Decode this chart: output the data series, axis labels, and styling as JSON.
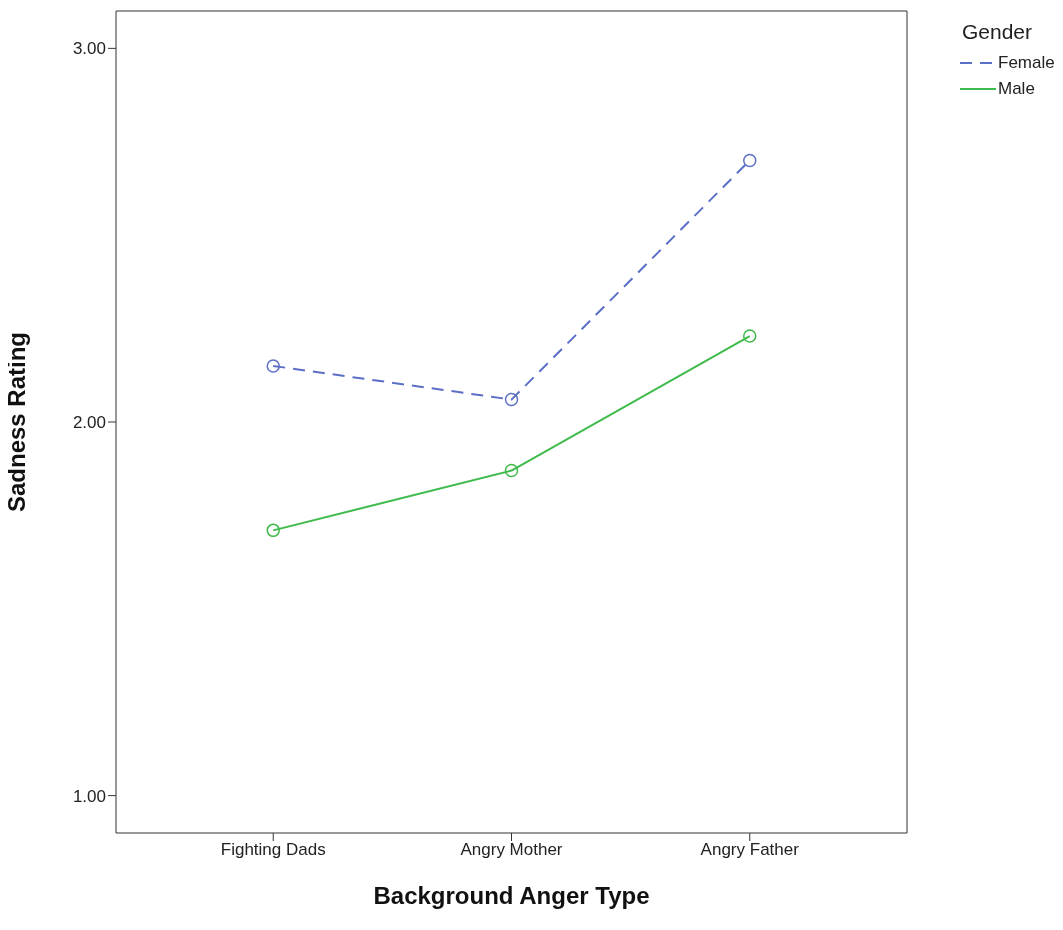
{
  "chart_data": {
    "type": "line",
    "xlabel": "Background Anger Type",
    "ylabel": "Sadness Rating",
    "legend_title": "Gender",
    "categories": [
      "Fighting Dads",
      "Angry Mother",
      "Angry Father"
    ],
    "series": [
      {
        "name": "Female",
        "color": "#5c6fc6",
        "values": [
          2.15,
          2.06,
          2.7
        ],
        "line_style": "dashed"
      },
      {
        "name": "Male",
        "color": "#3fbb4c",
        "values": [
          1.71,
          1.87,
          2.23
        ],
        "line_style": "solid"
      }
    ],
    "ylim": [
      0.9,
      3.1
    ],
    "yticks": [
      {
        "value": 1,
        "label": "1.00"
      },
      {
        "value": 2,
        "label": "2.00"
      },
      {
        "value": 3,
        "label": "3.00"
      }
    ],
    "marker": "circle",
    "legend": "top right",
    "grid": false
  }
}
